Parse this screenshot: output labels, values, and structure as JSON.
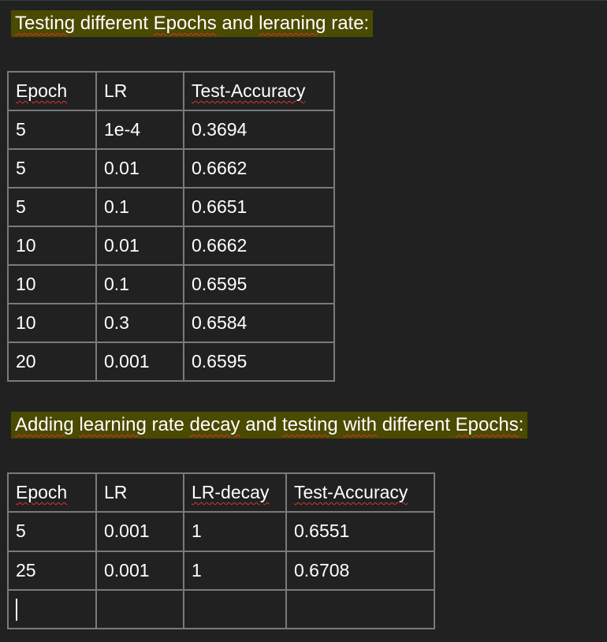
{
  "heading1": {
    "text": "Testing different Epochs and leraning rate:",
    "segments": [
      {
        "text": "Testing",
        "spell": true
      },
      {
        "text": " different ",
        "spell": false
      },
      {
        "text": "Epochs",
        "spell": true
      },
      {
        "text": " and ",
        "spell": false
      },
      {
        "text": "leraning",
        "spell": true
      },
      {
        "text": " rate:",
        "spell": false
      }
    ]
  },
  "table1": {
    "headers": [
      "Epoch",
      "LR",
      "Test-Accuracy"
    ],
    "header_spell": [
      true,
      false,
      true
    ],
    "rows": [
      [
        "5",
        "1e-4",
        "0.3694"
      ],
      [
        "5",
        "0.01",
        "0.6662"
      ],
      [
        "5",
        "0.1",
        "0.6651"
      ],
      [
        "10",
        "0.01",
        "0.6662"
      ],
      [
        "10",
        "0.1",
        "0.6595"
      ],
      [
        "10",
        "0.3",
        "0.6584"
      ],
      [
        "20",
        "0.001",
        "0.6595"
      ]
    ]
  },
  "heading2": {
    "text": "Adding learning rate decay and testing with different Epochs:",
    "segments": [
      {
        "text": "Adding",
        "spell": true
      },
      {
        "text": " ",
        "spell": false
      },
      {
        "text": "learning",
        "spell": true
      },
      {
        "text": " rate ",
        "spell": false
      },
      {
        "text": "decay",
        "spell": true
      },
      {
        "text": " and ",
        "spell": false
      },
      {
        "text": "testing",
        "spell": true
      },
      {
        "text": " ",
        "spell": false
      },
      {
        "text": "with",
        "spell": true
      },
      {
        "text": " different ",
        "spell": false
      },
      {
        "text": "Epochs",
        "spell": true
      },
      {
        "text": ":",
        "spell": false
      }
    ]
  },
  "table2": {
    "headers": [
      "Epoch",
      "LR",
      "LR-decay",
      "Test-Accuracy"
    ],
    "header_spell": [
      true,
      false,
      true,
      true
    ],
    "rows": [
      [
        "5",
        "0.001",
        "1",
        "0.6551"
      ],
      [
        "25",
        "0.001",
        "1",
        "0.6708"
      ],
      [
        "",
        "",
        "",
        ""
      ]
    ]
  },
  "colors": {
    "background": "#212121",
    "highlight": "#4a4a00",
    "table_border": "#7a7a7a",
    "spellcheck": "#e03030"
  }
}
